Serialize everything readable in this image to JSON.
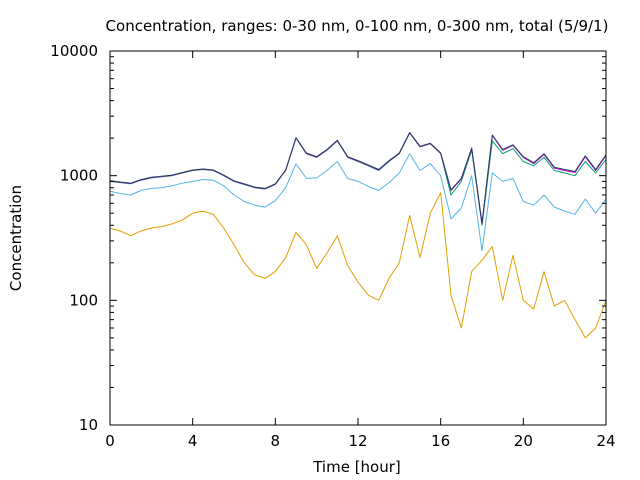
{
  "chart_data": {
    "type": "line",
    "title": "Concentration, ranges: 0-30 nm, 0-100 nm, 0-300 nm, total (5/9/1)",
    "xlabel": "Time [hour]",
    "ylabel": "Concentration",
    "xlim": [
      0,
      24
    ],
    "ylim": [
      10,
      10000
    ],
    "yscale": "log",
    "grid": false,
    "legend": "none",
    "x_ticks": [
      "0",
      "4",
      "8",
      "12",
      "16",
      "20",
      "24"
    ],
    "y_ticks": [
      "10",
      "100",
      "1000",
      "10000"
    ],
    "x": [
      0,
      0.5,
      1,
      1.5,
      2,
      2.5,
      3,
      3.5,
      4,
      4.5,
      5,
      5.5,
      6,
      6.5,
      7,
      7.5,
      8,
      8.5,
      9,
      9.5,
      10,
      10.5,
      11,
      11.5,
      12,
      12.5,
      13,
      13.5,
      14,
      14.5,
      15,
      15.5,
      16,
      16.5,
      17,
      17.5,
      18,
      18.5,
      19,
      19.5,
      20,
      20.5,
      21,
      21.5,
      22,
      22.5,
      23,
      23.5,
      24
    ],
    "series": [
      {
        "color": "#e69f00",
        "values": [
          380,
          360,
          330,
          360,
          380,
          390,
          410,
          440,
          500,
          520,
          490,
          380,
          280,
          200,
          160,
          150,
          170,
          220,
          350,
          280,
          180,
          240,
          330,
          190,
          140,
          110,
          100,
          150,
          200,
          480,
          220,
          500,
          730,
          110,
          60,
          170,
          210,
          270,
          100,
          230,
          100,
          85,
          170,
          90,
          100,
          70,
          50,
          60,
          100
        ]
      },
      {
        "color": "#56b4e9",
        "values": [
          750,
          720,
          700,
          760,
          790,
          800,
          830,
          870,
          900,
          930,
          920,
          830,
          700,
          620,
          580,
          560,
          630,
          800,
          1250,
          950,
          960,
          1100,
          1300,
          950,
          900,
          820,
          760,
          880,
          1050,
          1500,
          1100,
          1250,
          1000,
          450,
          550,
          1000,
          250,
          1050,
          900,
          950,
          620,
          580,
          700,
          560,
          520,
          490,
          650,
          500,
          650
        ]
      },
      {
        "color": "#009e73",
        "values": [
          900,
          880,
          860,
          920,
          960,
          980,
          1000,
          1050,
          1100,
          1120,
          1100,
          1000,
          900,
          850,
          800,
          780,
          850,
          1100,
          2000,
          1500,
          1400,
          1600,
          1900,
          1400,
          1300,
          1200,
          1100,
          1300,
          1500,
          2200,
          1700,
          1800,
          1500,
          700,
          900,
          1600,
          400,
          1900,
          1500,
          1650,
          1300,
          1200,
          1400,
          1100,
          1050,
          1000,
          1300,
          1050,
          1350
        ]
      },
      {
        "color": "#cc00cc",
        "values": [
          905,
          885,
          865,
          925,
          965,
          985,
          1005,
          1055,
          1105,
          1125,
          1105,
          1005,
          905,
          855,
          805,
          785,
          855,
          1105,
          2010,
          1510,
          1410,
          1610,
          1910,
          1410,
          1310,
          1210,
          1110,
          1310,
          1510,
          2210,
          1710,
          1810,
          1510,
          760,
          940,
          1660,
          410,
          2100,
          1600,
          1750,
          1400,
          1250,
          1480,
          1150,
          1100,
          1060,
          1420,
          1100,
          1450
        ]
      },
      {
        "color": "#1f3f5f",
        "values": [
          910,
          890,
          870,
          930,
          970,
          990,
          1010,
          1060,
          1110,
          1130,
          1110,
          1010,
          910,
          860,
          810,
          790,
          860,
          1110,
          2020,
          1520,
          1420,
          1620,
          1920,
          1420,
          1320,
          1220,
          1120,
          1320,
          1520,
          2220,
          1720,
          1820,
          1520,
          770,
          950,
          1670,
          415,
          2120,
          1620,
          1770,
          1420,
          1270,
          1500,
          1170,
          1120,
          1080,
          1440,
          1120,
          1470
        ]
      }
    ]
  }
}
